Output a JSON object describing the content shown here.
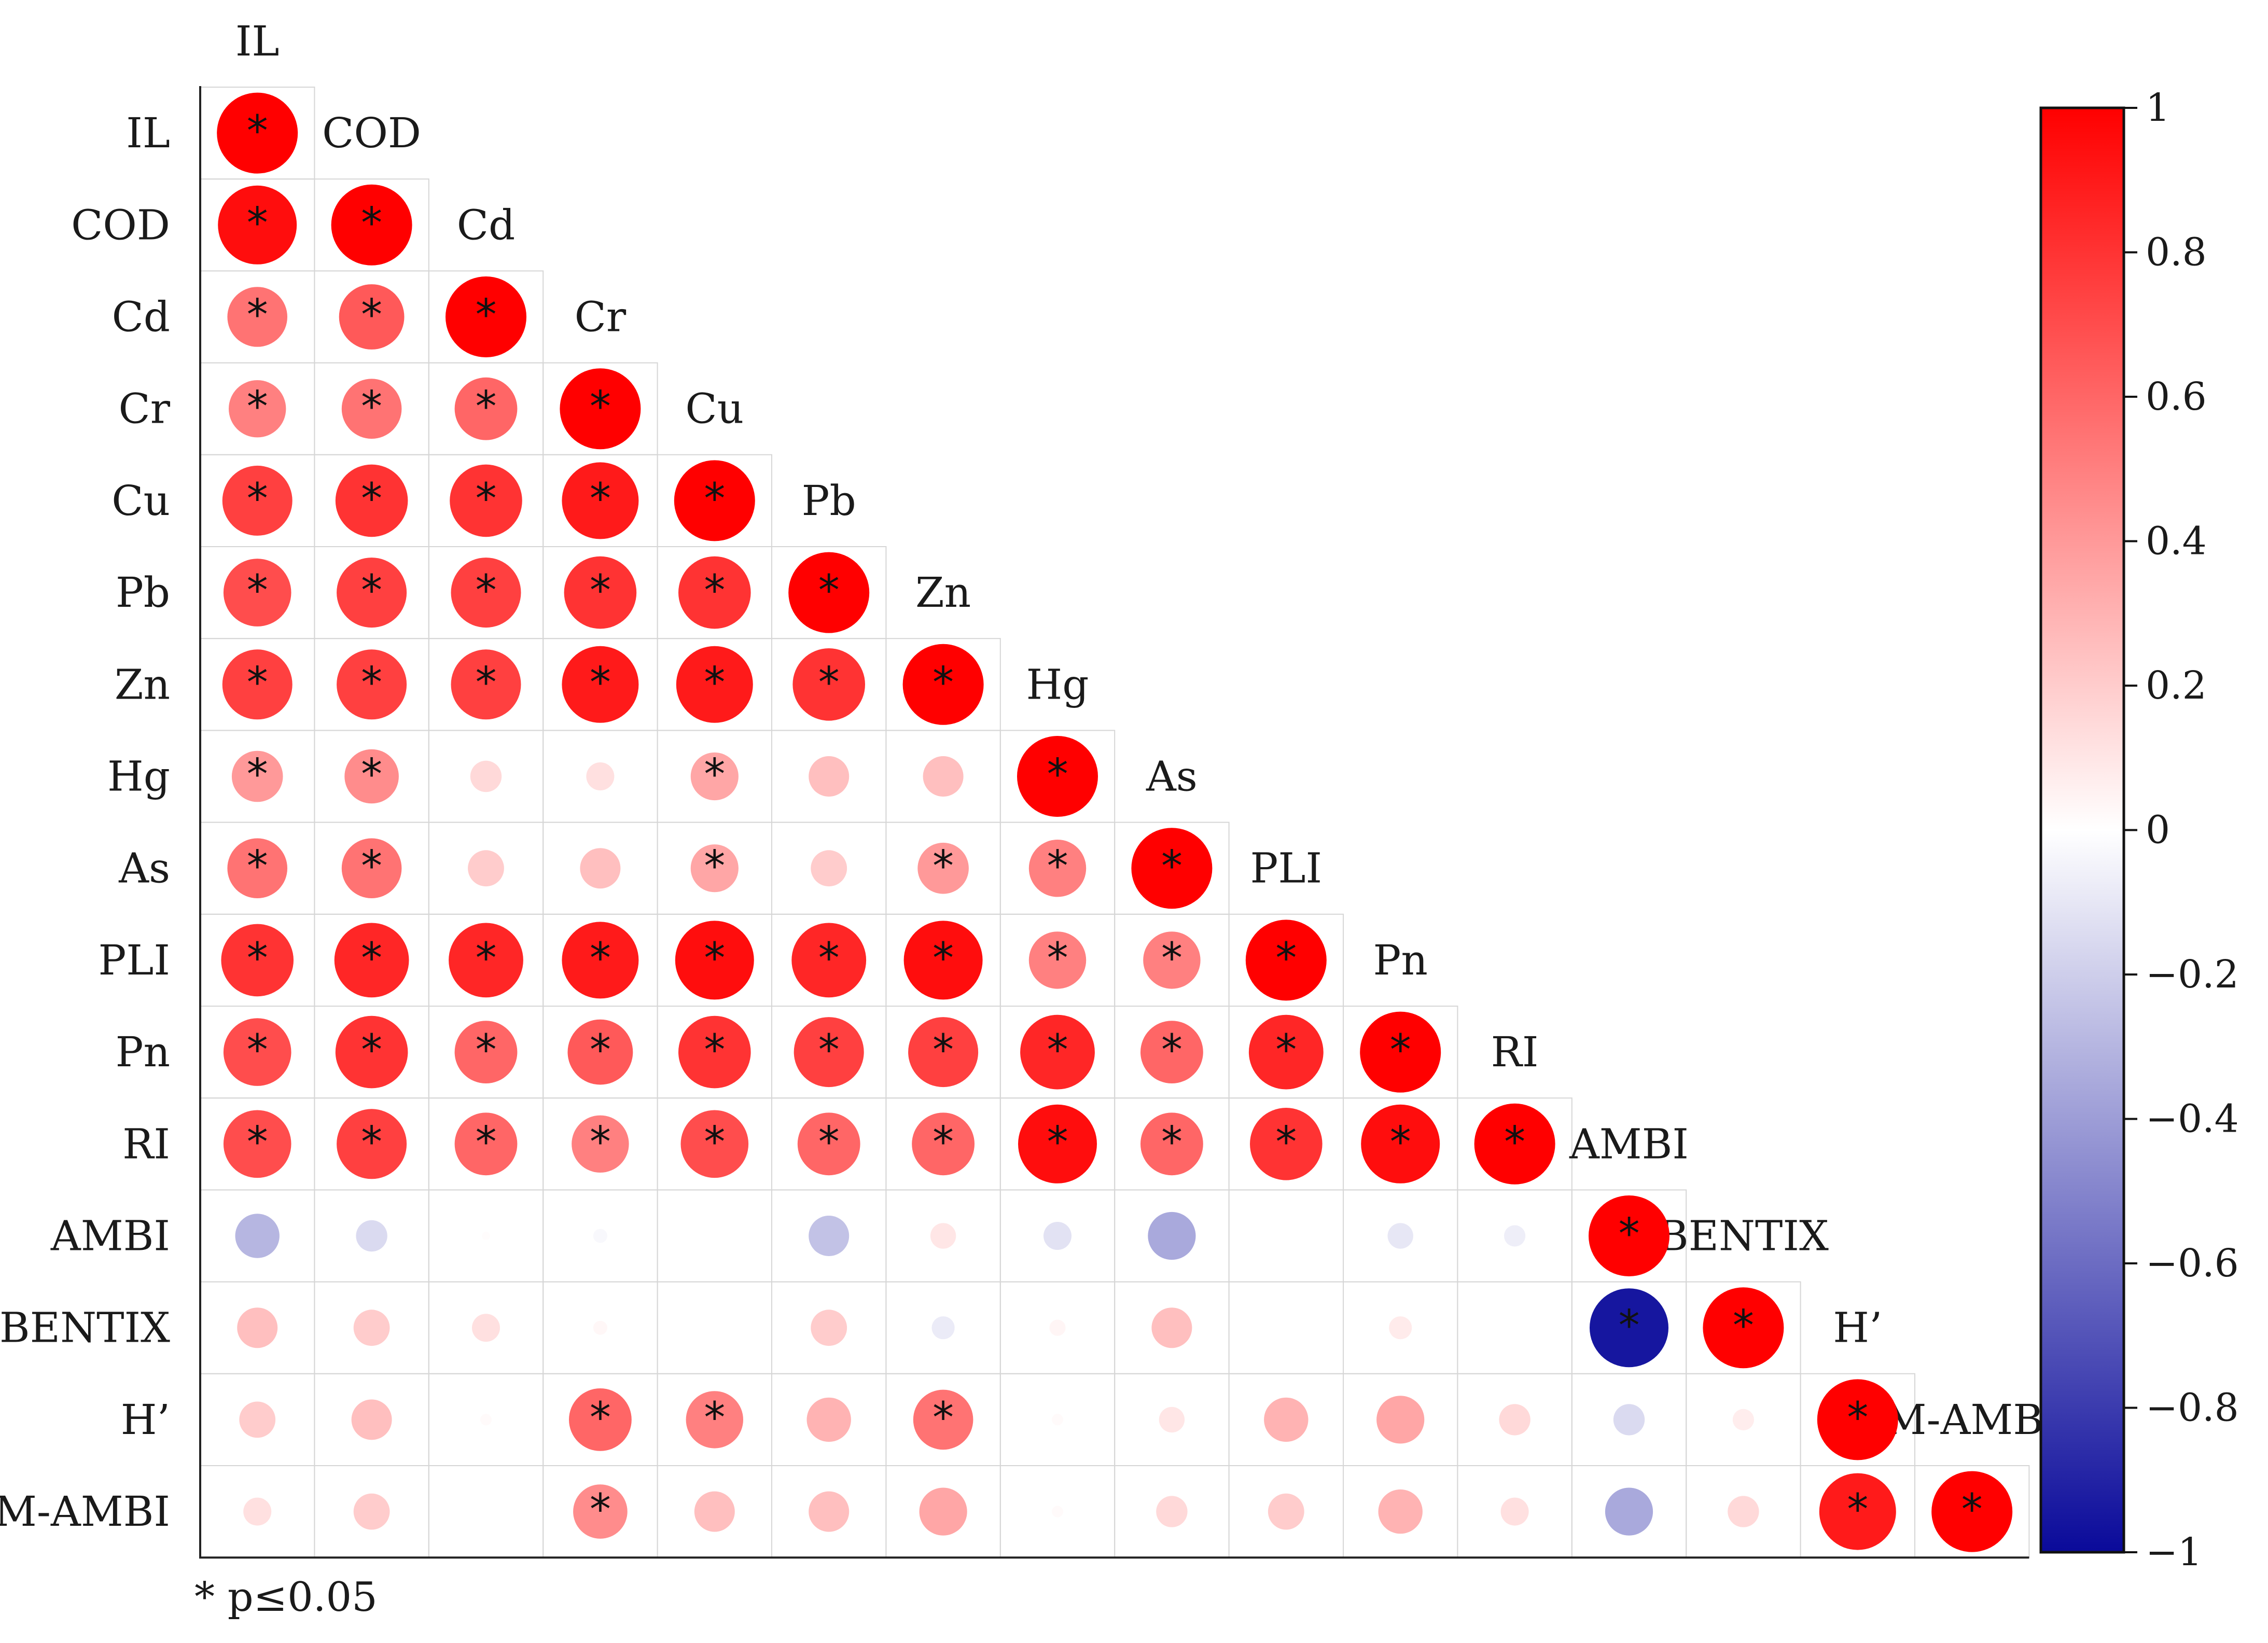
{
  "chart_data": {
    "type": "heatmap",
    "variables": [
      "IL",
      "COD",
      "Cd",
      "Cr",
      "Cu",
      "Pb",
      "Zn",
      "Hg",
      "As",
      "PLI",
      "Pn",
      "RI",
      "AMBI",
      "BENTIX",
      "H'",
      "M-AMBI"
    ],
    "row_labels": [
      "IL",
      "COD",
      "Cd",
      "Cr",
      "Cu",
      "Pb",
      "Zn",
      "Hg",
      "As",
      "PLI",
      "Pn",
      "RI",
      "AMBI",
      "BENTIX",
      "H’",
      "M-AMBI"
    ],
    "col_labels": [
      "IL",
      "COD",
      "Cd",
      "Cr",
      "Cu",
      "Pb",
      "Zn",
      "Hg",
      "As",
      "PLI",
      "Pn",
      "RI",
      "AMBI",
      "BENTIX",
      "H’",
      "M-AMBI"
    ],
    "matrix_lower": [
      [
        1.0
      ],
      [
        0.95,
        1.0
      ],
      [
        0.55,
        0.65,
        1.0
      ],
      [
        0.5,
        0.55,
        0.6,
        1.0
      ],
      [
        0.75,
        0.8,
        0.8,
        0.9,
        1.0
      ],
      [
        0.7,
        0.75,
        0.75,
        0.8,
        0.8,
        1.0
      ],
      [
        0.75,
        0.75,
        0.75,
        0.9,
        0.9,
        0.8,
        1.0
      ],
      [
        0.4,
        0.45,
        0.15,
        0.12,
        0.35,
        0.25,
        0.25,
        1.0
      ],
      [
        0.55,
        0.55,
        0.2,
        0.25,
        0.35,
        0.2,
        0.4,
        0.5,
        1.0
      ],
      [
        0.8,
        0.85,
        0.85,
        0.9,
        0.95,
        0.85,
        0.95,
        0.5,
        0.5,
        1.0
      ],
      [
        0.7,
        0.8,
        0.6,
        0.65,
        0.8,
        0.75,
        0.75,
        0.85,
        0.6,
        0.85,
        1.0
      ],
      [
        0.7,
        0.75,
        0.6,
        0.5,
        0.7,
        0.6,
        0.6,
        0.95,
        0.6,
        0.8,
        0.95,
        1.0
      ],
      [
        -0.3,
        -0.15,
        0.01,
        -0.03,
        0.0,
        -0.25,
        0.1,
        -0.12,
        -0.35,
        0.0,
        -0.1,
        -0.07,
        1.0
      ],
      [
        0.25,
        0.2,
        0.12,
        0.03,
        0.0,
        0.2,
        -0.08,
        0.04,
        0.25,
        0.0,
        0.08,
        0.0,
        -0.95,
        1.0
      ],
      [
        0.2,
        0.25,
        0.02,
        0.6,
        0.5,
        0.3,
        0.55,
        0.02,
        0.1,
        0.3,
        0.35,
        0.15,
        -0.15,
        0.07,
        1.0
      ],
      [
        0.12,
        0.2,
        0.0,
        0.45,
        0.25,
        0.25,
        0.35,
        0.02,
        0.15,
        0.2,
        0.3,
        0.12,
        -0.35,
        0.15,
        0.9,
        1.0
      ]
    ],
    "significant_lower": [
      [
        1
      ],
      [
        1,
        1
      ],
      [
        1,
        1,
        1
      ],
      [
        1,
        1,
        1,
        1
      ],
      [
        1,
        1,
        1,
        1,
        1
      ],
      [
        1,
        1,
        1,
        1,
        1,
        1
      ],
      [
        1,
        1,
        1,
        1,
        1,
        1,
        1
      ],
      [
        1,
        1,
        0,
        0,
        1,
        0,
        0,
        1
      ],
      [
        1,
        1,
        0,
        0,
        1,
        0,
        1,
        1,
        1
      ],
      [
        1,
        1,
        1,
        1,
        1,
        1,
        1,
        1,
        1,
        1
      ],
      [
        1,
        1,
        1,
        1,
        1,
        1,
        1,
        1,
        1,
        1,
        1
      ],
      [
        1,
        1,
        1,
        1,
        1,
        1,
        1,
        1,
        1,
        1,
        1,
        1
      ],
      [
        0,
        0,
        0,
        0,
        0,
        0,
        0,
        0,
        0,
        0,
        0,
        0,
        1
      ],
      [
        0,
        0,
        0,
        0,
        0,
        0,
        0,
        0,
        0,
        0,
        0,
        0,
        1,
        1
      ],
      [
        0,
        0,
        0,
        1,
        1,
        0,
        1,
        0,
        0,
        0,
        0,
        0,
        0,
        0,
        1
      ],
      [
        0,
        0,
        0,
        1,
        0,
        0,
        0,
        0,
        0,
        0,
        0,
        0,
        0,
        0,
        1,
        1
      ]
    ],
    "colorbar": {
      "min": -1,
      "max": 1,
      "ticks": [
        "1",
        "0.8",
        "0.6",
        "0.4",
        "0.2",
        "0",
        "−0.2",
        "−0.4",
        "−0.6",
        "−0.8",
        "−1"
      ],
      "colors": {
        "negative": "#0a0a9a",
        "zero": "#ffffff",
        "positive": "#ff0000"
      }
    },
    "significance_note": "* p≤0.05",
    "star_symbol": "*"
  }
}
